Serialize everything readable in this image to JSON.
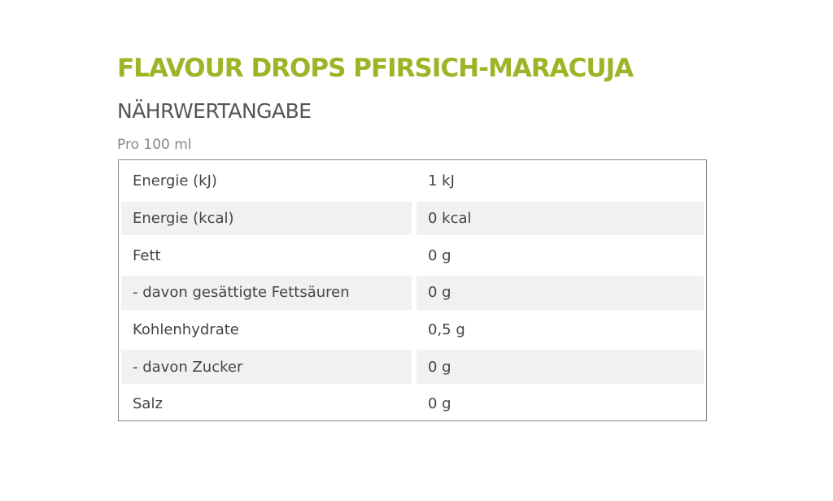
{
  "title": "FLAVOUR DROPS PFIRSICH-MARACUJA",
  "subtitle": "NÄHRWERTANGABE",
  "per": "Pro 100 ml",
  "colors": {
    "title": "#9bb526",
    "stripe": "#f1f1f1"
  },
  "rows": [
    {
      "label": "Energie (kJ)",
      "value": "1 kJ"
    },
    {
      "label": "Energie (kcal)",
      "value": "0 kcal"
    },
    {
      "label": "Fett",
      "value": "0 g"
    },
    {
      "label": "- davon gesättigte Fettsäuren",
      "value": "0 g"
    },
    {
      "label": "Kohlenhydrate",
      "value": "0,5 g"
    },
    {
      "label": "- davon Zucker",
      "value": "0 g"
    },
    {
      "label": "Salz",
      "value": "0 g"
    }
  ]
}
